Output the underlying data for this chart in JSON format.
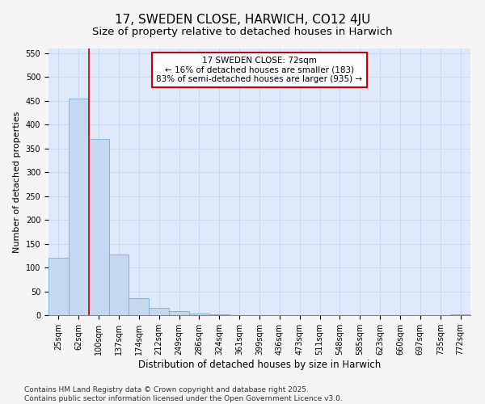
{
  "title": "17, SWEDEN CLOSE, HARWICH, CO12 4JU",
  "subtitle": "Size of property relative to detached houses in Harwich",
  "xlabel": "Distribution of detached houses by size in Harwich",
  "ylabel": "Number of detached properties",
  "bar_categories": [
    "25sqm",
    "62sqm",
    "100sqm",
    "137sqm",
    "174sqm",
    "212sqm",
    "249sqm",
    "286sqm",
    "324sqm",
    "361sqm",
    "399sqm",
    "436sqm",
    "473sqm",
    "511sqm",
    "548sqm",
    "585sqm",
    "623sqm",
    "660sqm",
    "697sqm",
    "735sqm",
    "772sqm"
  ],
  "bar_values": [
    120,
    455,
    370,
    128,
    35,
    15,
    8,
    3,
    1,
    0,
    0,
    0,
    0,
    0,
    0,
    0,
    0,
    0,
    0,
    0,
    2
  ],
  "bar_color": "#c5d8f0",
  "bar_edgecolor": "#7bafd4",
  "annotation_text_line1": "17 SWEDEN CLOSE: 72sqm",
  "annotation_text_line2": "← 16% of detached houses are smaller (183)",
  "annotation_text_line3": "83% of semi-detached houses are larger (935) →",
  "annotation_box_color": "#cc0000",
  "annotation_box_fill": "#ffffff",
  "ylim": [
    0,
    560
  ],
  "yticks": [
    0,
    50,
    100,
    150,
    200,
    250,
    300,
    350,
    400,
    450,
    500,
    550
  ],
  "grid_color": "#c8d8ee",
  "background_color": "#dde8f8",
  "footer_line1": "Contains HM Land Registry data © Crown copyright and database right 2025.",
  "footer_line2": "Contains public sector information licensed under the Open Government Licence v3.0.",
  "title_fontsize": 11,
  "subtitle_fontsize": 9.5,
  "xlabel_fontsize": 8.5,
  "ylabel_fontsize": 8,
  "tick_fontsize": 7,
  "annotation_fontsize": 7.5,
  "footer_fontsize": 6.5
}
